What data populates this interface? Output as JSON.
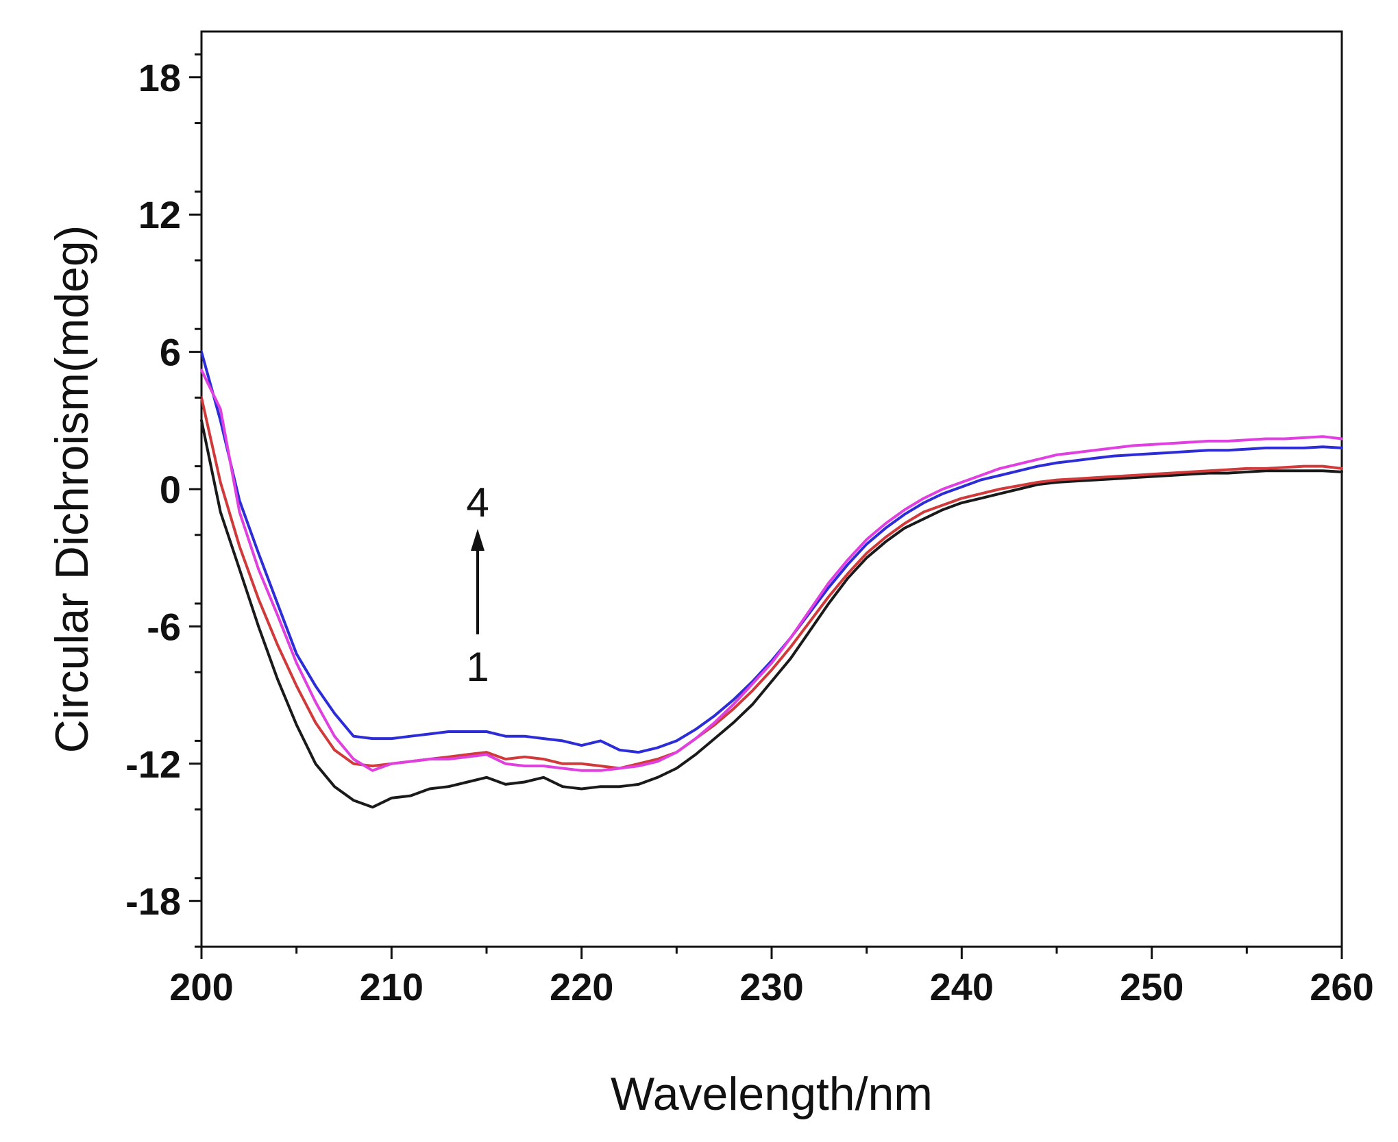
{
  "chart_data": {
    "type": "line",
    "title": "",
    "xlabel": "Wavelength/nm",
    "ylabel": "Circular Dichroism(mdeg)",
    "xlim": [
      200,
      260
    ],
    "ylim": [
      -20,
      20
    ],
    "x_ticks": [
      200,
      210,
      220,
      230,
      240,
      250,
      260
    ],
    "x_tick_labels": [
      "200",
      "210",
      "220",
      "230",
      "240",
      "250",
      "260"
    ],
    "y_ticks": [
      -18,
      -12,
      -6,
      0,
      6,
      12,
      18
    ],
    "y_tick_labels": [
      "-18",
      "-12",
      "-6",
      "0",
      "6",
      "12",
      "18"
    ],
    "grid": false,
    "annotations": {
      "start_label": "1",
      "end_label": "4",
      "arrow": "up"
    },
    "x": [
      200,
      201,
      202,
      203,
      204,
      205,
      206,
      207,
      208,
      209,
      210,
      211,
      212,
      213,
      214,
      215,
      216,
      217,
      218,
      219,
      220,
      221,
      222,
      223,
      224,
      225,
      226,
      227,
      228,
      229,
      230,
      231,
      232,
      233,
      234,
      235,
      236,
      237,
      238,
      239,
      240,
      241,
      242,
      243,
      244,
      245,
      246,
      247,
      248,
      249,
      250,
      251,
      252,
      253,
      254,
      255,
      256,
      257,
      258,
      259,
      260
    ],
    "series": [
      {
        "name": "1",
        "color": "#1a1a1a",
        "values": [
          3.0,
          -1.0,
          -3.5,
          -6.0,
          -8.3,
          -10.3,
          -12.0,
          -13.0,
          -13.6,
          -13.9,
          -13.5,
          -13.4,
          -13.1,
          -13.0,
          -12.8,
          -12.6,
          -12.9,
          -12.8,
          -12.6,
          -13.0,
          -13.1,
          -13.0,
          -13.0,
          -12.9,
          -12.6,
          -12.2,
          -11.6,
          -10.9,
          -10.2,
          -9.4,
          -8.4,
          -7.4,
          -6.2,
          -5.0,
          -3.9,
          -3.0,
          -2.3,
          -1.7,
          -1.3,
          -0.9,
          -0.6,
          -0.4,
          -0.2,
          0.0,
          0.2,
          0.3,
          0.35,
          0.4,
          0.45,
          0.5,
          0.55,
          0.6,
          0.65,
          0.7,
          0.7,
          0.75,
          0.8,
          0.8,
          0.8,
          0.8,
          0.75
        ]
      },
      {
        "name": "2",
        "color": "#d03a3a",
        "values": [
          4.0,
          0.3,
          -2.5,
          -4.8,
          -6.8,
          -8.6,
          -10.2,
          -11.4,
          -12.0,
          -12.1,
          -12.0,
          -11.9,
          -11.8,
          -11.7,
          -11.6,
          -11.5,
          -11.8,
          -11.7,
          -11.8,
          -12.0,
          -12.0,
          -12.1,
          -12.2,
          -12.0,
          -11.8,
          -11.5,
          -10.9,
          -10.3,
          -9.6,
          -8.8,
          -7.9,
          -6.9,
          -5.8,
          -4.7,
          -3.7,
          -2.8,
          -2.1,
          -1.5,
          -1.0,
          -0.7,
          -0.4,
          -0.2,
          0.0,
          0.15,
          0.3,
          0.4,
          0.45,
          0.5,
          0.55,
          0.6,
          0.65,
          0.7,
          0.75,
          0.8,
          0.85,
          0.9,
          0.9,
          0.95,
          1.0,
          1.0,
          0.9
        ]
      },
      {
        "name": "3",
        "color": "#2d2dd8",
        "values": [
          6.0,
          3.0,
          -0.5,
          -2.8,
          -5.0,
          -7.2,
          -8.6,
          -9.8,
          -10.8,
          -10.9,
          -10.9,
          -10.8,
          -10.7,
          -10.6,
          -10.6,
          -10.6,
          -10.8,
          -10.8,
          -10.9,
          -11.0,
          -11.2,
          -11.0,
          -11.4,
          -11.5,
          -11.3,
          -11.0,
          -10.5,
          -9.9,
          -9.2,
          -8.4,
          -7.5,
          -6.5,
          -5.4,
          -4.3,
          -3.3,
          -2.4,
          -1.7,
          -1.1,
          -0.6,
          -0.2,
          0.1,
          0.4,
          0.6,
          0.8,
          1.0,
          1.15,
          1.25,
          1.35,
          1.45,
          1.5,
          1.55,
          1.6,
          1.65,
          1.7,
          1.7,
          1.75,
          1.8,
          1.8,
          1.8,
          1.85,
          1.8
        ]
      },
      {
        "name": "4",
        "color": "#e040e0",
        "values": [
          5.2,
          3.5,
          -1.0,
          -3.5,
          -5.5,
          -7.6,
          -9.3,
          -10.8,
          -11.8,
          -12.3,
          -12.0,
          -11.9,
          -11.8,
          -11.8,
          -11.7,
          -11.6,
          -12.0,
          -12.1,
          -12.1,
          -12.2,
          -12.3,
          -12.3,
          -12.2,
          -12.1,
          -11.9,
          -11.5,
          -10.9,
          -10.2,
          -9.4,
          -8.5,
          -7.6,
          -6.5,
          -5.3,
          -4.1,
          -3.1,
          -2.2,
          -1.5,
          -0.9,
          -0.4,
          0.0,
          0.3,
          0.6,
          0.9,
          1.1,
          1.3,
          1.5,
          1.6,
          1.7,
          1.8,
          1.9,
          1.95,
          2.0,
          2.05,
          2.1,
          2.1,
          2.15,
          2.2,
          2.2,
          2.25,
          2.3,
          2.2
        ]
      }
    ]
  }
}
